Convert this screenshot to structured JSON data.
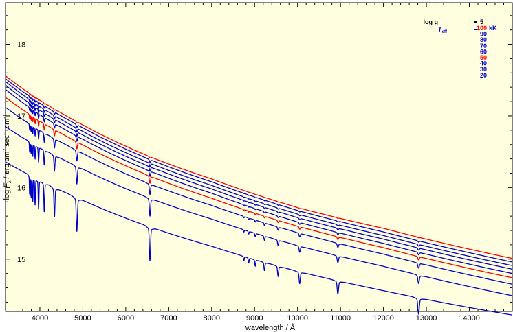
{
  "chart_data": {
    "type": "line",
    "title": "",
    "xlabel": "wavelength / Å",
    "ylabel": {
      "prefix": "log ",
      "symbol": "F",
      "symbol_sub": "λ",
      "mid": " / erg cm",
      "exp1": "2",
      "mid2": " sec",
      "exp2": "-1",
      "mid3": " cm",
      "exp3": "-1"
    },
    "xlim": [
      3200,
      15000
    ],
    "ylim": [
      14.27,
      18.58
    ],
    "xticks": [
      4000,
      5000,
      6000,
      7000,
      8000,
      9000,
      10000,
      11000,
      12000,
      13000,
      14000
    ],
    "yticks": [
      15,
      16,
      17,
      18
    ],
    "background_color": "#ffffe0",
    "legend": {
      "position": "top-right",
      "logg_label": "log g",
      "logg_value": "5",
      "teff_symbol": "T",
      "teff_sub": "eff",
      "unit": "kK",
      "entries": [
        "100",
        "90",
        "80",
        "70",
        "60",
        "50",
        "40",
        "30",
        "20"
      ],
      "colors": [
        "#ff0000",
        "#0000cc",
        "#0000cc",
        "#0000cc",
        "#0000cc",
        "#ff0000",
        "#0000cc",
        "#0000cc",
        "#0000cc"
      ]
    },
    "continuum_x": [
      3200,
      4000,
      4861,
      6563,
      8000,
      10000,
      12000,
      15000
    ],
    "series": [
      {
        "teff_kK": 100,
        "color": "#ff0000",
        "y": [
          17.56,
          17.22,
          16.92,
          16.43,
          16.12,
          15.72,
          15.43,
          15.01
        ],
        "line_depth": 0.015
      },
      {
        "teff_kK": 90,
        "color": "#0000cc",
        "y": [
          17.52,
          17.18,
          16.88,
          16.39,
          16.08,
          15.68,
          15.38,
          14.96
        ],
        "line_depth": 0.03
      },
      {
        "teff_kK": 80,
        "color": "#0000cc",
        "y": [
          17.48,
          17.13,
          16.83,
          16.34,
          16.03,
          15.63,
          15.33,
          14.91
        ],
        "line_depth": 0.04
      },
      {
        "teff_kK": 70,
        "color": "#0000cc",
        "y": [
          17.43,
          17.08,
          16.78,
          16.29,
          15.98,
          15.58,
          15.28,
          14.86
        ],
        "line_depth": 0.05
      },
      {
        "teff_kK": 60,
        "color": "#0000cc",
        "y": [
          17.37,
          17.02,
          16.72,
          16.23,
          15.92,
          15.52,
          15.22,
          14.8
        ],
        "line_depth": 0.06
      },
      {
        "teff_kK": 50,
        "color": "#ff0000",
        "y": [
          17.26,
          16.93,
          16.64,
          16.16,
          15.85,
          15.46,
          15.16,
          14.74
        ],
        "line_depth": 0.08
      },
      {
        "teff_kK": 40,
        "color": "#0000cc",
        "y": [
          17.12,
          16.8,
          16.52,
          16.05,
          15.75,
          15.37,
          15.07,
          14.65
        ],
        "line_depth": 0.12
      },
      {
        "teff_kK": 30,
        "color": "#0000cc",
        "y": [
          16.85,
          16.56,
          16.3,
          15.85,
          15.56,
          15.19,
          14.9,
          14.49
        ],
        "line_depth": 0.2
      },
      {
        "teff_kK": 20,
        "color": "#0000cc",
        "y": [
          16.36,
          16.1,
          15.86,
          15.45,
          15.18,
          14.83,
          14.56,
          14.22
        ],
        "line_depth": 0.38
      }
    ],
    "absorption_lines": [
      {
        "x": 3760,
        "w": 5,
        "depth": 0.55
      },
      {
        "x": 3771,
        "w": 5,
        "depth": 0.6
      },
      {
        "x": 3798,
        "w": 6,
        "depth": 0.7
      },
      {
        "x": 3835,
        "w": 7,
        "depth": 0.8
      },
      {
        "x": 3889,
        "w": 8,
        "depth": 0.9
      },
      {
        "x": 3970,
        "w": 9,
        "depth": 1.0
      },
      {
        "x": 4102,
        "w": 10,
        "depth": 1.0
      },
      {
        "x": 4340,
        "w": 12,
        "depth": 1.0
      },
      {
        "x": 4861,
        "w": 14,
        "depth": 1.15
      },
      {
        "x": 6563,
        "w": 14,
        "depth": 1.15
      },
      {
        "x": 8750,
        "w": 10,
        "depth": 0.15
      },
      {
        "x": 8863,
        "w": 10,
        "depth": 0.18
      },
      {
        "x": 9015,
        "w": 11,
        "depth": 0.22
      },
      {
        "x": 9229,
        "w": 12,
        "depth": 0.28
      },
      {
        "x": 9546,
        "w": 13,
        "depth": 0.35
      },
      {
        "x": 10049,
        "w": 15,
        "depth": 0.4
      },
      {
        "x": 10938,
        "w": 17,
        "depth": 0.45
      },
      {
        "x": 12818,
        "w": 18,
        "depth": 0.55
      }
    ]
  }
}
